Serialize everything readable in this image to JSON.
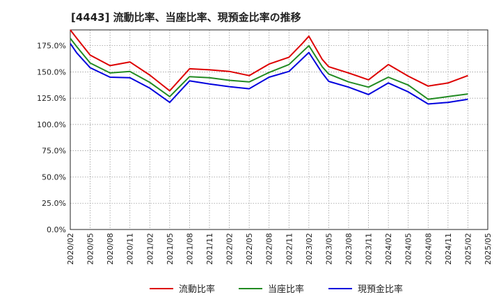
{
  "chart_data": {
    "type": "line",
    "title": "[4443]  流動比率、当座比率、現預金比率の推移",
    "xlabel": "",
    "ylabel": "",
    "ylim": [
      0,
      190
    ],
    "yticks": [
      0,
      25,
      50,
      75,
      100,
      125,
      150,
      175
    ],
    "ytick_labels": [
      "0.0%",
      "25.0%",
      "50.0%",
      "75.0%",
      "100.0%",
      "125.0%",
      "150.0%",
      "175.0%"
    ],
    "x_tick_labels": [
      "2020/02",
      "2020/05",
      "2020/08",
      "2020/11",
      "2021/02",
      "2021/05",
      "2021/08",
      "2021/11",
      "2022/02",
      "2022/05",
      "2022/08",
      "2022/11",
      "2023/02",
      "2023/05",
      "2023/08",
      "2023/11",
      "2024/02",
      "2024/05",
      "2024/08",
      "2024/11",
      "2025/02",
      "2025/05"
    ],
    "grid": true,
    "legend_position": "bottom",
    "series": [
      {
        "name": "流動比率",
        "color": "#dd0000",
        "points": [
          [
            0,
            190
          ],
          [
            0.33,
            182
          ],
          [
            1,
            166
          ],
          [
            2,
            156
          ],
          [
            3,
            159.5
          ],
          [
            4,
            147
          ],
          [
            4.67,
            137
          ],
          [
            5,
            132
          ],
          [
            6,
            153
          ],
          [
            7,
            152
          ],
          [
            8,
            150.5
          ],
          [
            9,
            146.5
          ],
          [
            10,
            157.5
          ],
          [
            11,
            164
          ],
          [
            11.67,
            177
          ],
          [
            12,
            184
          ],
          [
            12.67,
            162
          ],
          [
            13,
            155
          ],
          [
            14,
            149
          ],
          [
            15,
            142.5
          ],
          [
            16,
            157
          ],
          [
            17,
            146
          ],
          [
            18,
            136.5
          ],
          [
            19,
            139.5
          ],
          [
            20,
            146.5
          ]
        ]
      },
      {
        "name": "当座比率",
        "color": "#228b22",
        "points": [
          [
            0,
            182
          ],
          [
            0.33,
            174
          ],
          [
            1,
            158.5
          ],
          [
            2,
            149
          ],
          [
            3,
            150.5
          ],
          [
            4,
            140
          ],
          [
            5,
            126.5
          ],
          [
            6,
            145.5
          ],
          [
            7,
            144.5
          ],
          [
            8,
            142
          ],
          [
            9,
            140.5
          ],
          [
            10,
            149.5
          ],
          [
            11,
            157
          ],
          [
            11.67,
            169
          ],
          [
            12,
            175
          ],
          [
            12.67,
            155
          ],
          [
            13,
            148
          ],
          [
            14,
            140.5
          ],
          [
            15,
            135.5
          ],
          [
            16,
            145
          ],
          [
            17,
            137.5
          ],
          [
            18,
            124
          ],
          [
            19,
            126.5
          ],
          [
            20,
            129
          ]
        ]
      },
      {
        "name": "現預金比率",
        "color": "#0000dd",
        "points": [
          [
            0,
            177
          ],
          [
            0.33,
            168
          ],
          [
            1,
            154
          ],
          [
            2,
            145
          ],
          [
            3,
            144.5
          ],
          [
            4,
            134.5
          ],
          [
            5,
            121
          ],
          [
            6,
            141.5
          ],
          [
            7,
            138.5
          ],
          [
            8,
            136
          ],
          [
            9,
            134
          ],
          [
            10,
            145
          ],
          [
            11,
            150.5
          ],
          [
            11.67,
            162.5
          ],
          [
            12,
            168.5
          ],
          [
            12.67,
            149
          ],
          [
            13,
            141
          ],
          [
            14,
            135.5
          ],
          [
            15,
            128.5
          ],
          [
            16,
            139.5
          ],
          [
            17,
            131
          ],
          [
            18,
            119.5
          ],
          [
            19,
            121
          ],
          [
            20,
            124
          ]
        ]
      }
    ]
  }
}
